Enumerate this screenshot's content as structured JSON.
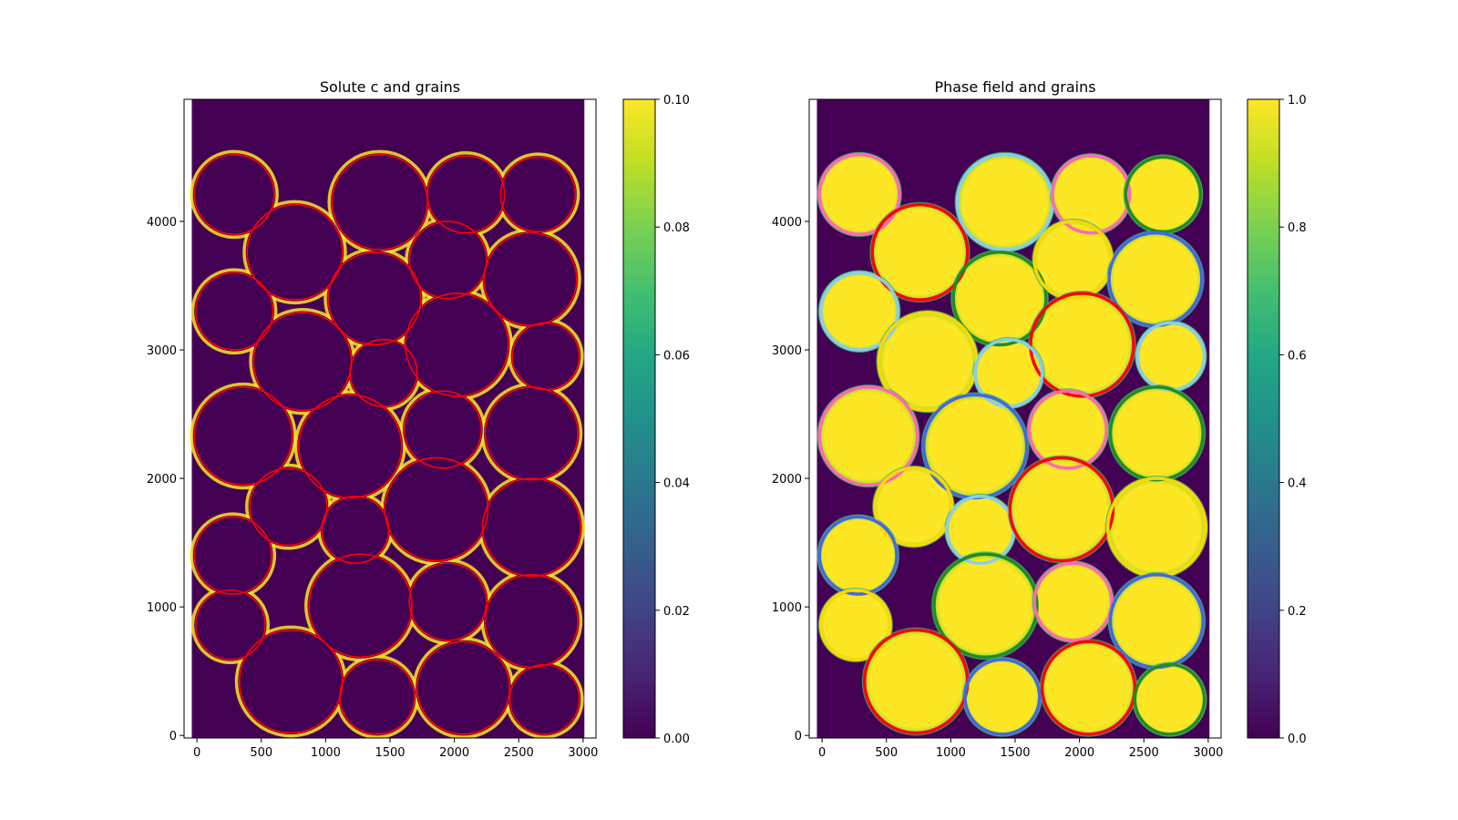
{
  "figure": {
    "background": "#ffffff"
  },
  "chart_data": [
    {
      "type": "heatmap",
      "title": "Solute c and grains",
      "xlabel": "",
      "ylabel": "",
      "xlim": [
        -100,
        3100
      ],
      "ylim": [
        -20,
        4950
      ],
      "field_extent": {
        "x": [
          -40,
          3010
        ],
        "y": [
          -20,
          4950
        ]
      },
      "xticks": [
        0,
        500,
        1000,
        1500,
        2000,
        2500,
        3000
      ],
      "xtick_labels": [
        "0",
        "500",
        "1000",
        "1500",
        "2000",
        "2500",
        "3000"
      ],
      "yticks": [
        0,
        1000,
        2000,
        3000,
        4000
      ],
      "ytick_labels": [
        "0",
        "1000",
        "2000",
        "3000",
        "4000"
      ],
      "colorbar": {
        "colormap": "viridis",
        "range": [
          0,
          0.1
        ],
        "ticks": [
          0,
          0.02,
          0.04,
          0.06,
          0.08,
          0.1
        ],
        "tick_labels": [
          "0.00",
          "0.02",
          "0.04",
          "0.06",
          "0.08",
          "0.10"
        ]
      },
      "field_description": "solute concentrated (yellow) in thin channels between grains; grain interiors ~0",
      "circle_color": "#ff0000",
      "grid": false
    },
    {
      "type": "heatmap",
      "title": "Phase field and grains",
      "xlabel": "",
      "ylabel": "",
      "xlim": [
        -100,
        3100
      ],
      "ylim": [
        -20,
        4950
      ],
      "field_extent": {
        "x": [
          -40,
          3010
        ],
        "y": [
          -20,
          4950
        ]
      },
      "xticks": [
        0,
        500,
        1000,
        1500,
        2000,
        2500,
        3000
      ],
      "xtick_labels": [
        "0",
        "500",
        "1000",
        "1500",
        "2000",
        "2500",
        "3000"
      ],
      "yticks": [
        0,
        1000,
        2000,
        3000,
        4000
      ],
      "ytick_labels": [
        "0",
        "1000",
        "2000",
        "3000",
        "4000"
      ],
      "colorbar": {
        "colormap": "viridis",
        "range": [
          0,
          1
        ],
        "ticks": [
          0,
          0.2,
          0.4,
          0.6,
          0.8,
          1.0
        ],
        "tick_labels": [
          "0.0",
          "0.2",
          "0.4",
          "0.6",
          "0.8",
          "1.0"
        ]
      },
      "field_description": "phase = 1 (yellow) inside each grain, 0 (purple) between grains",
      "grid": false
    }
  ],
  "grains": [
    {
      "x": 290,
      "y": 4210,
      "r": 310,
      "color": "#ff69b4"
    },
    {
      "x": 1420,
      "y": 4150,
      "r": 370,
      "color": "#87ceeb"
    },
    {
      "x": 2090,
      "y": 4210,
      "r": 300,
      "color": "#ff69b4"
    },
    {
      "x": 2650,
      "y": 4210,
      "r": 290,
      "color": "#228b22"
    },
    {
      "x": 760,
      "y": 3760,
      "r": 370,
      "color": "#ff0000"
    },
    {
      "x": 1380,
      "y": 3400,
      "r": 360,
      "color": "#228b22"
    },
    {
      "x": 1950,
      "y": 3700,
      "r": 300,
      "color": "#ffd700"
    },
    {
      "x": 2590,
      "y": 3550,
      "r": 360,
      "color": "#4169e1"
    },
    {
      "x": 290,
      "y": 3300,
      "r": 300,
      "color": "#87ceeb"
    },
    {
      "x": 820,
      "y": 2910,
      "r": 380,
      "color": "#ffd700"
    },
    {
      "x": 2020,
      "y": 3040,
      "r": 400,
      "color": "#ff0000"
    },
    {
      "x": 2710,
      "y": 2950,
      "r": 260,
      "color": "#87ceeb"
    },
    {
      "x": 1450,
      "y": 2820,
      "r": 260,
      "color": "#87ceeb"
    },
    {
      "x": 360,
      "y": 2330,
      "r": 380,
      "color": "#ff69b4"
    },
    {
      "x": 1190,
      "y": 2250,
      "r": 400,
      "color": "#4169e1"
    },
    {
      "x": 1910,
      "y": 2380,
      "r": 300,
      "color": "#ff69b4"
    },
    {
      "x": 2600,
      "y": 2350,
      "r": 360,
      "color": "#228b22"
    },
    {
      "x": 710,
      "y": 1780,
      "r": 300,
      "color": "#ffd700"
    },
    {
      "x": 1230,
      "y": 1600,
      "r": 260,
      "color": "#87ceeb"
    },
    {
      "x": 1860,
      "y": 1760,
      "r": 400,
      "color": "#ff0000"
    },
    {
      "x": 2600,
      "y": 1620,
      "r": 380,
      "color": "#ffd700"
    },
    {
      "x": 280,
      "y": 1400,
      "r": 300,
      "color": "#4169e1"
    },
    {
      "x": 1270,
      "y": 1010,
      "r": 400,
      "color": "#228b22"
    },
    {
      "x": 1950,
      "y": 1040,
      "r": 300,
      "color": "#ff69b4"
    },
    {
      "x": 2600,
      "y": 890,
      "r": 360,
      "color": "#4169e1"
    },
    {
      "x": 260,
      "y": 860,
      "r": 270,
      "color": "#ffd700"
    },
    {
      "x": 730,
      "y": 420,
      "r": 400,
      "color": "#ff0000"
    },
    {
      "x": 1400,
      "y": 300,
      "r": 290,
      "color": "#4169e1"
    },
    {
      "x": 2070,
      "y": 370,
      "r": 360,
      "color": "#ff0000"
    },
    {
      "x": 2700,
      "y": 280,
      "r": 270,
      "color": "#228b22"
    }
  ]
}
